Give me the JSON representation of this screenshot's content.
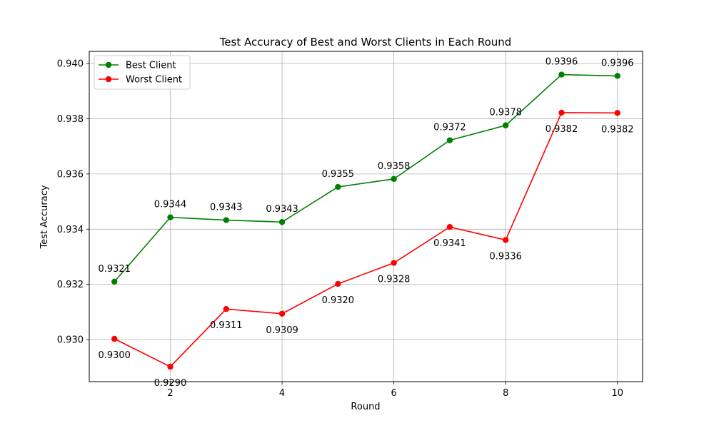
{
  "chart_data": {
    "type": "line",
    "title": "Test Accuracy of Best and Worst Clients in Each Round",
    "xlabel": "Round",
    "ylabel": "Test Accuracy",
    "xlim": [
      0.55,
      10.45
    ],
    "ylim": [
      0.92848,
      0.94044
    ],
    "xticks": [
      2,
      4,
      6,
      8,
      10
    ],
    "yticks": [
      0.93,
      0.932,
      0.934,
      0.936,
      0.938,
      0.94
    ],
    "ytick_labels": [
      "0.930",
      "0.932",
      "0.934",
      "0.936",
      "0.938",
      "0.940"
    ],
    "grid": true,
    "legend": "top-left",
    "x": [
      1,
      2,
      3,
      4,
      5,
      6,
      7,
      8,
      9,
      10
    ],
    "series": [
      {
        "name": "Best Client",
        "color": "#008000",
        "label_position": "above",
        "values": [
          0.9321,
          0.93443,
          0.93433,
          0.93426,
          0.93553,
          0.93582,
          0.93722,
          0.93776,
          0.9396,
          0.93955
        ],
        "labels": [
          "0.9321",
          "0.9344",
          "0.9343",
          "0.9343",
          "0.9355",
          "0.9358",
          "0.9372",
          "0.9378",
          "0.9396",
          "0.9396"
        ]
      },
      {
        "name": "Worst Client",
        "color": "#ff0000",
        "label_position": "below",
        "values": [
          0.93003,
          0.92902,
          0.93111,
          0.93094,
          0.93202,
          0.93278,
          0.93408,
          0.93361,
          0.93822,
          0.93821
        ],
        "labels": [
          "0.9300",
          "0.9290",
          "0.9311",
          "0.9309",
          "0.9320",
          "0.9328",
          "0.9341",
          "0.9336",
          "0.9382",
          "0.9382"
        ]
      }
    ]
  }
}
